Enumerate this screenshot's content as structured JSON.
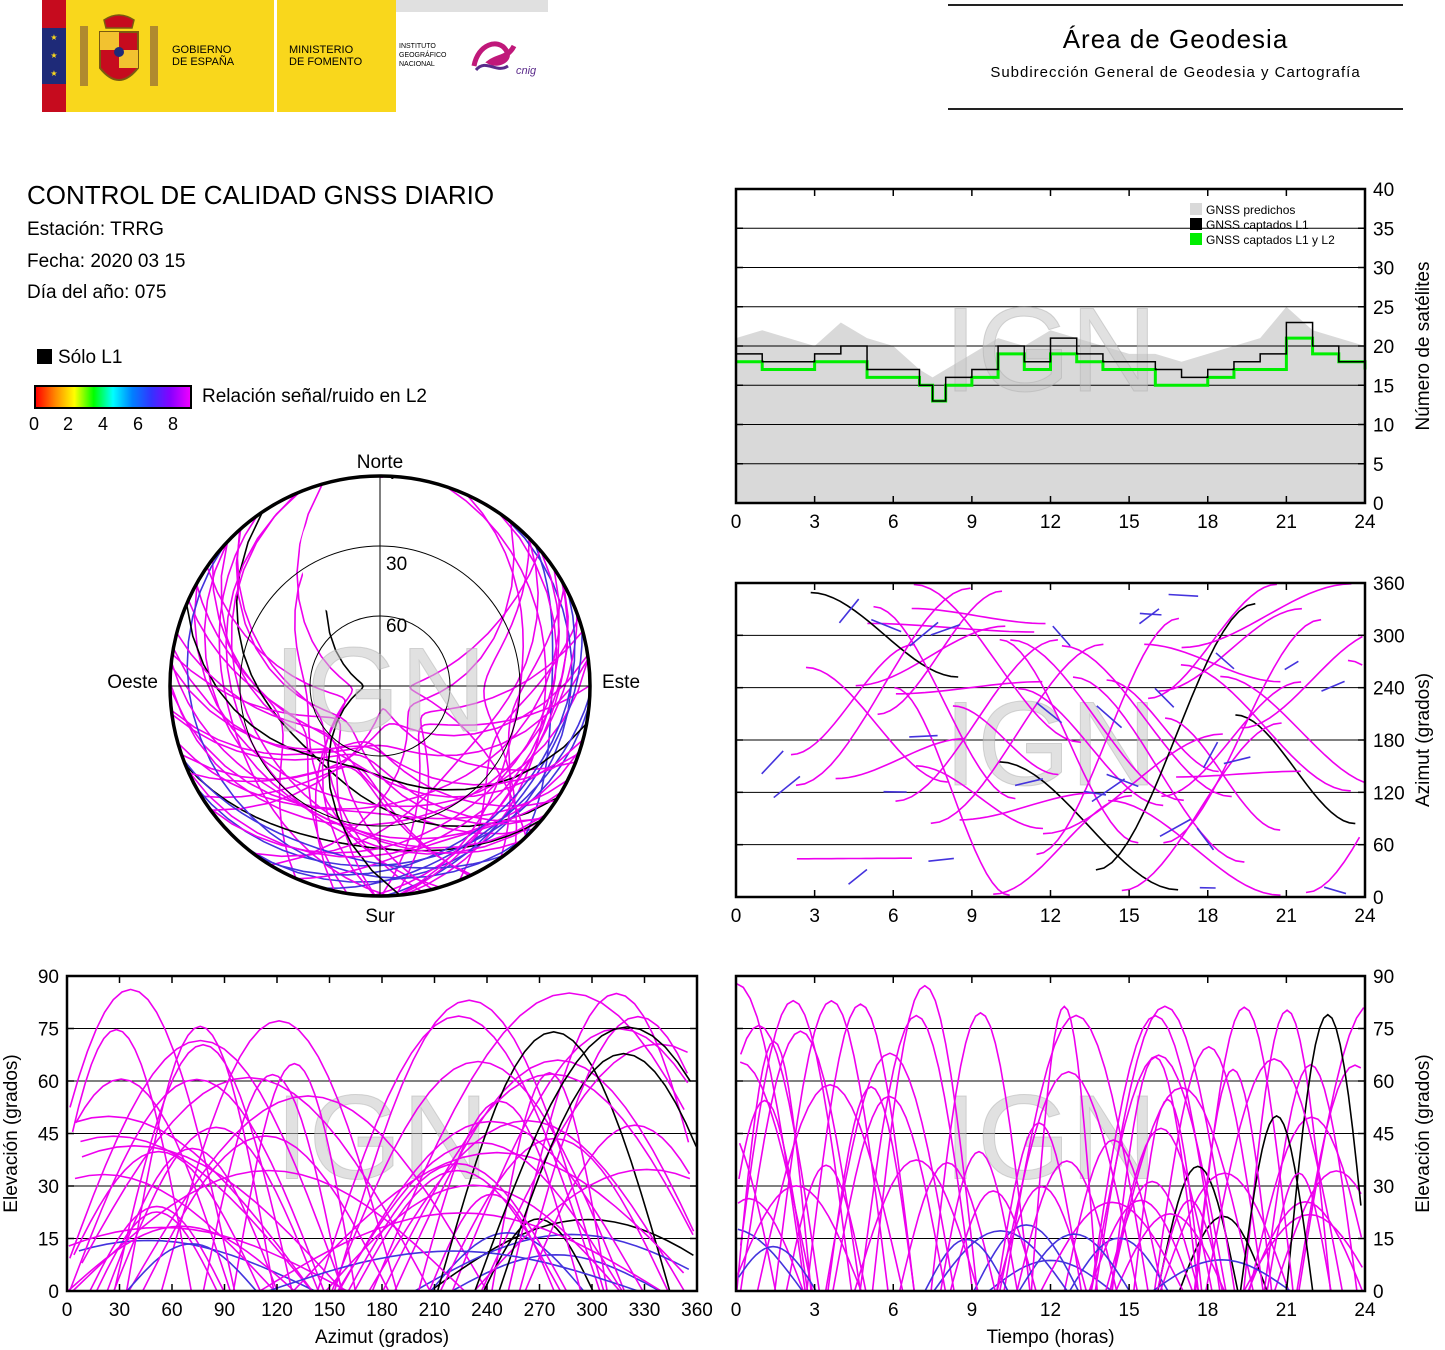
{
  "header": {
    "gov_text": [
      "GOBIERNO",
      "DE ESPAÑA"
    ],
    "ministry_text": [
      "MINISTERIO",
      "DE FOMENTO"
    ],
    "institute_text": [
      "INSTITUTO",
      "GEOGRÁFICO",
      "NACIONAL"
    ],
    "cnig_text": "cnig",
    "title": "Área de Geodesia",
    "subtitle": "Subdirección General de Geodesia y Cartografía"
  },
  "info": {
    "title": "CONTROL DE CALIDAD GNSS DIARIO",
    "station": "Estación: TRRG",
    "date": "Fecha: 2020 03 15",
    "doy": "Día del año: 075"
  },
  "legend": {
    "l1_only": "Sólo L1",
    "snr_label": "Relación señal/ruido en L2",
    "snr_ticks": [
      "0",
      "2",
      "4",
      "6",
      "8"
    ]
  },
  "watermark": "IGN",
  "colors": {
    "l2_track": "#ee00ee",
    "low_snr_track": "#4433dd",
    "l1_only": "#000000",
    "predicted": "#d9d9d9",
    "l1_and_l2": "#00ee00"
  },
  "chart_data": [
    {
      "type": "line",
      "id": "satellite-count",
      "xlabel": "",
      "ylabel": "Número de satélites",
      "xlim": [
        0,
        24
      ],
      "ylim": [
        0,
        40
      ],
      "x_ticks": [
        "0",
        "3",
        "6",
        "9",
        "12",
        "15",
        "18",
        "21",
        "24"
      ],
      "y_ticks": [
        "0",
        "5",
        "10",
        "15",
        "20",
        "25",
        "30",
        "35",
        "40"
      ],
      "grid": true,
      "legend_position": "top-right",
      "x": [
        0,
        1,
        2,
        3,
        4,
        5,
        6,
        7,
        7.5,
        8,
        9,
        10,
        11,
        12,
        13,
        14,
        15,
        16,
        17,
        18,
        19,
        20,
        21,
        22,
        23,
        24
      ],
      "series": [
        {
          "name": "GNSS predichos",
          "values": [
            21,
            22,
            21,
            20,
            23,
            21,
            20,
            17,
            16,
            17,
            19,
            21,
            20,
            22,
            21,
            20,
            19,
            19,
            18,
            19,
            20,
            21,
            25,
            22,
            21,
            20
          ]
        },
        {
          "name": "GNSS captados L1",
          "values": [
            19,
            18,
            18,
            19,
            20,
            17,
            17,
            15,
            13,
            16,
            17,
            20,
            18,
            21,
            19,
            18,
            18,
            17,
            16,
            17,
            18,
            19,
            23,
            20,
            18,
            18
          ]
        },
        {
          "name": "GNSS captados L1 y L2",
          "values": [
            18,
            17,
            17,
            18,
            18,
            16,
            16,
            15,
            13,
            15,
            16,
            19,
            17,
            19,
            18,
            17,
            17,
            15,
            15,
            16,
            17,
            17,
            21,
            19,
            18,
            17
          ]
        }
      ]
    },
    {
      "type": "scatter",
      "id": "azimuth-vs-time",
      "xlabel": "",
      "ylabel": "Azimut (grados)",
      "xlim": [
        0,
        24
      ],
      "ylim": [
        0,
        360
      ],
      "x_ticks": [
        "0",
        "3",
        "6",
        "9",
        "12",
        "15",
        "18",
        "21",
        "24"
      ],
      "y_ticks": [
        "0",
        "60",
        "120",
        "180",
        "240",
        "300",
        "360"
      ],
      "grid": true
    },
    {
      "type": "scatter",
      "id": "elevation-vs-azimuth",
      "xlabel": "Azimut (grados)",
      "ylabel": "Elevación (grados)",
      "xlim": [
        0,
        360
      ],
      "ylim": [
        0,
        90
      ],
      "x_ticks": [
        "0",
        "30",
        "60",
        "90",
        "120",
        "150",
        "180",
        "210",
        "240",
        "270",
        "300",
        "330",
        "360"
      ],
      "y_ticks": [
        "0",
        "15",
        "30",
        "45",
        "60",
        "75",
        "90"
      ],
      "grid": true
    },
    {
      "type": "scatter",
      "id": "elevation-vs-time",
      "xlabel": "Tiempo (horas)",
      "ylabel": "Elevación (grados)",
      "xlim": [
        0,
        24
      ],
      "ylim": [
        0,
        90
      ],
      "x_ticks": [
        "0",
        "3",
        "6",
        "9",
        "12",
        "15",
        "18",
        "21",
        "24"
      ],
      "y_ticks": [
        "0",
        "15",
        "30",
        "45",
        "60",
        "75",
        "90"
      ],
      "grid": true
    },
    {
      "type": "scatter",
      "id": "skyplot",
      "directions": {
        "north": "Norte",
        "south": "Sur",
        "east": "Este",
        "west": "Oeste"
      },
      "rings": [
        "30",
        "60"
      ]
    }
  ]
}
